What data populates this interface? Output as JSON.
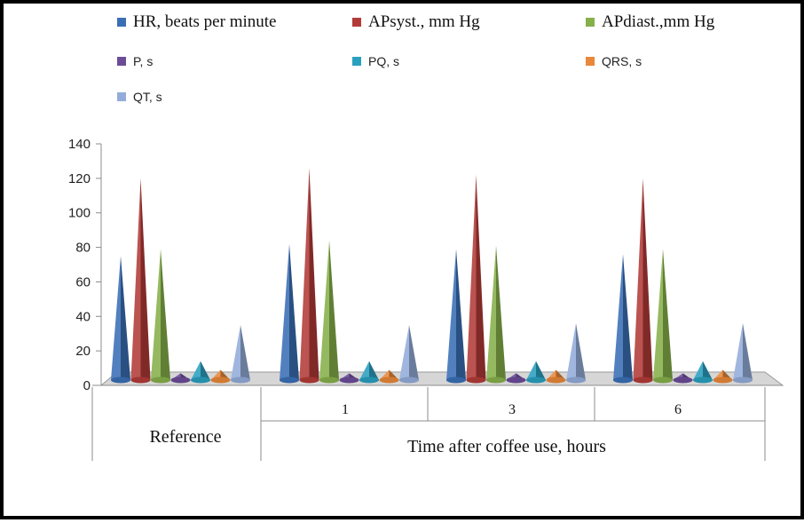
{
  "chart_data": {
    "type": "bar",
    "style": "3d-cone",
    "title": "",
    "xlabel": "Time after coffee use, hours",
    "ylabel": "",
    "ylim": [
      0,
      140
    ],
    "yticks": [
      0,
      20,
      40,
      60,
      80,
      100,
      120,
      140
    ],
    "grid": false,
    "legend_position": "top",
    "categories": [
      "Reference",
      "1",
      "3",
      "6"
    ],
    "series": [
      {
        "name": "HR, beats per minute",
        "color": "#3a6fb5",
        "values": [
          75,
          82,
          79,
          76
        ]
      },
      {
        "name": "APsyst., mm Hg",
        "color": "#b23b38",
        "values": [
          120,
          126,
          122,
          120
        ]
      },
      {
        "name": "APdiast.,mm Hg",
        "color": "#86b04a",
        "values": [
          79,
          84,
          81,
          79
        ]
      },
      {
        "name": "P, s",
        "color": "#6c4c98",
        "values": [
          7,
          7,
          7,
          7
        ]
      },
      {
        "name": "PQ, s",
        "color": "#2aa0bf",
        "values": [
          14,
          14,
          14,
          14
        ]
      },
      {
        "name": "QRS, s",
        "color": "#e8883a",
        "values": [
          9,
          9,
          9,
          9
        ]
      },
      {
        "name": "QT, s",
        "color": "#93acd9",
        "values": [
          35,
          35,
          36,
          36
        ]
      }
    ]
  }
}
